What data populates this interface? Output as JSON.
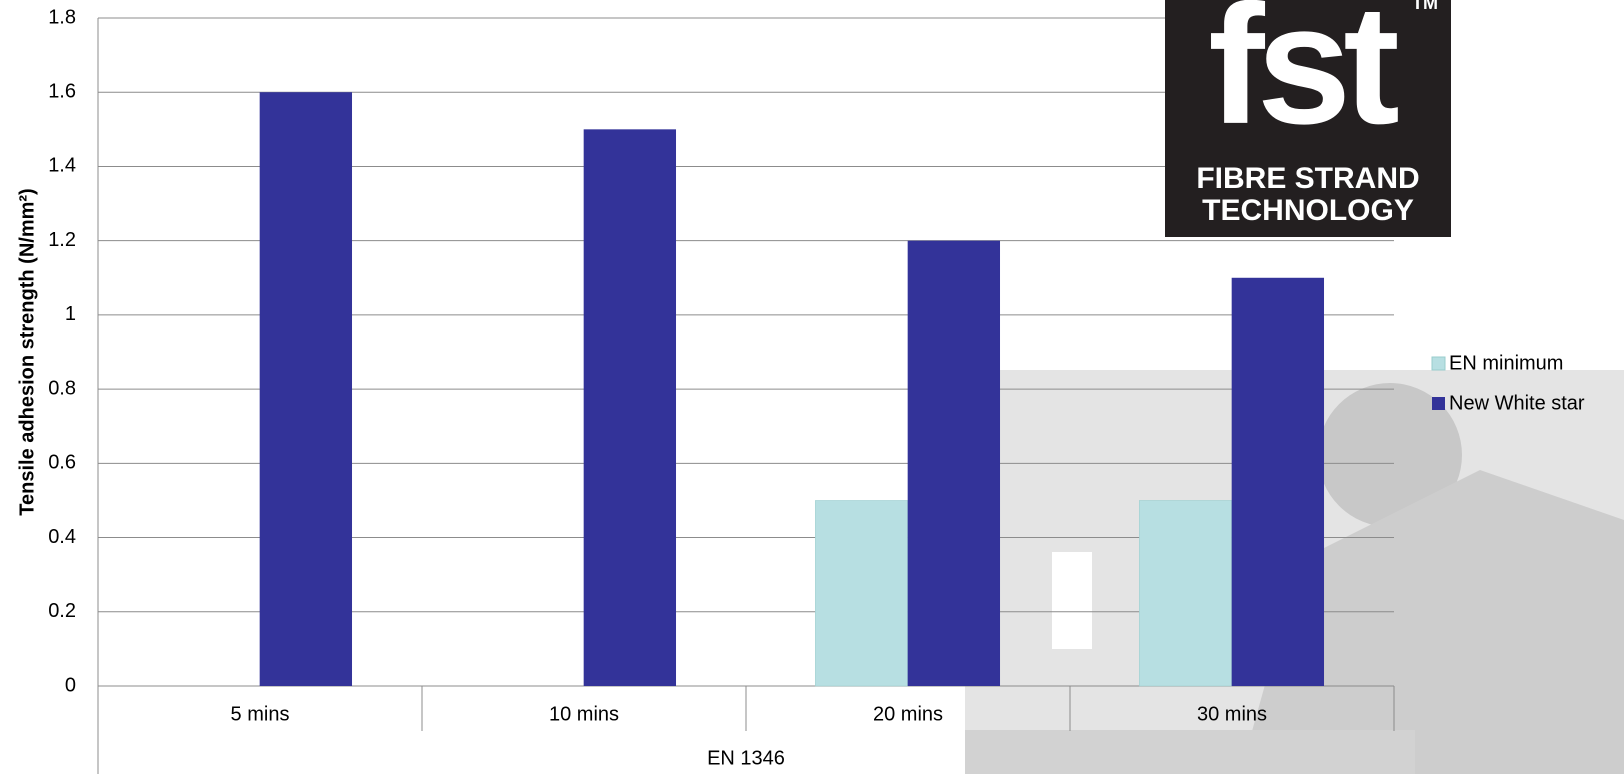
{
  "chart_data": {
    "type": "bar",
    "y_label": "Tensile adhesion strength (N/mm²)",
    "categories": [
      "5 mins",
      "10 mins",
      "20 mins",
      "30 mins"
    ],
    "group_label": "EN 1346",
    "series": [
      {
        "name": "EN minimum",
        "color": "#b7dfe2",
        "values": [
          null,
          null,
          0.5,
          0.5
        ]
      },
      {
        "name": "New White star",
        "color": "#333399",
        "values": [
          1.6,
          1.5,
          1.2,
          1.1
        ]
      }
    ],
    "ylim": [
      0,
      1.8
    ],
    "yticks": [
      0,
      0.2,
      0.4,
      0.6,
      0.8,
      1,
      1.2,
      1.4,
      1.6,
      1.8
    ],
    "grid": true
  },
  "logo": {
    "mark": "fst",
    "lines": [
      "FIBRE STRAND",
      "TECHNOLOGY"
    ],
    "trademark": "TM"
  }
}
